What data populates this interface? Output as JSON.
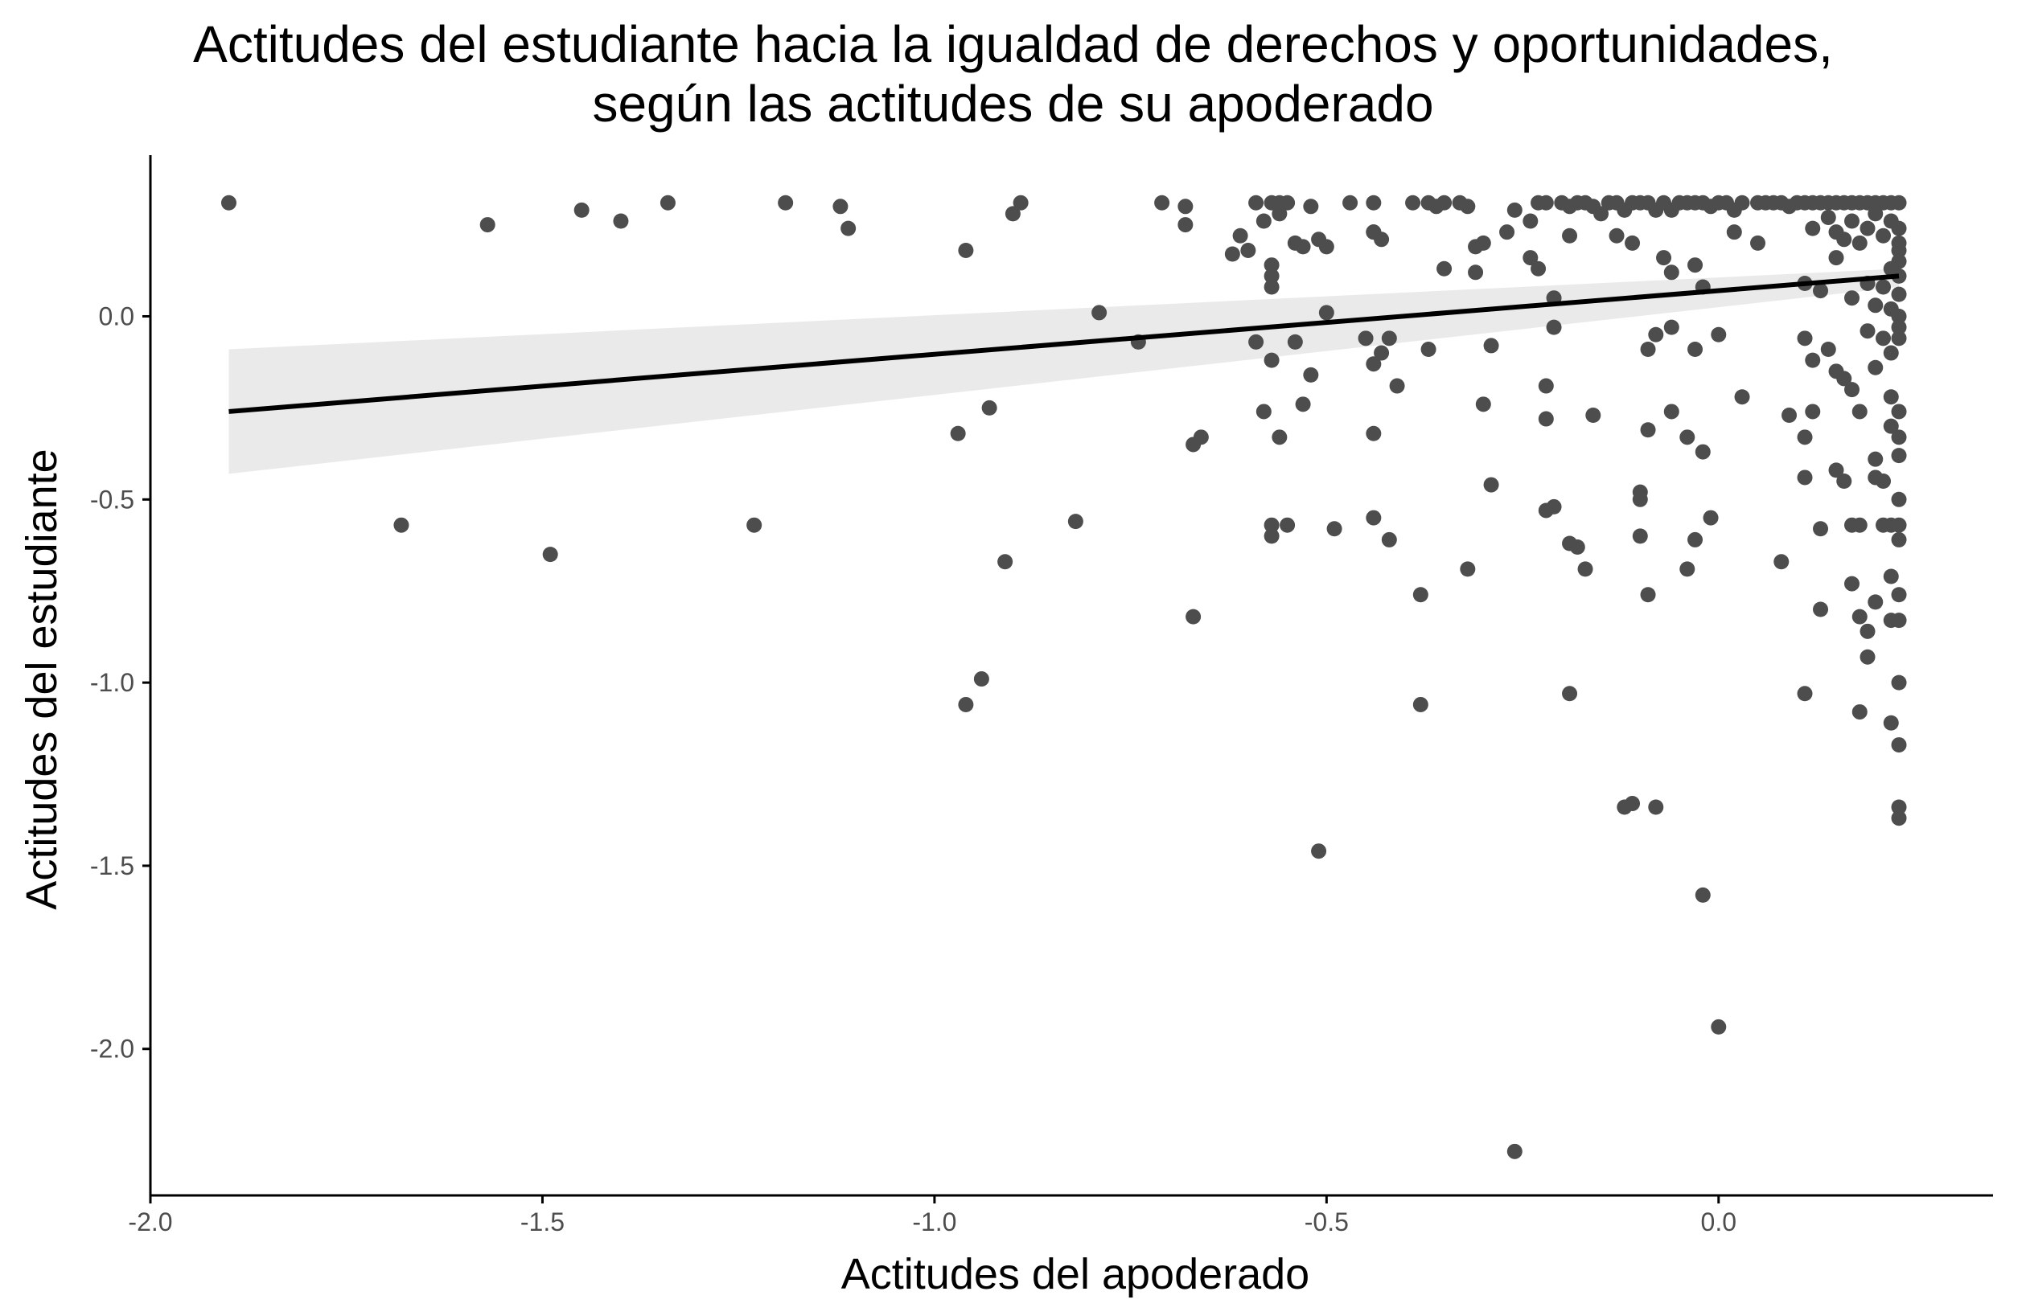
{
  "chart_data": {
    "type": "scatter",
    "title_line1": "Actitudes del estudiante hacia la igualdad de derechos y oportunidades,",
    "title_line2": "según las actitudes de su apoderado",
    "xlabel": "Actitudes del apoderado",
    "ylabel": "Actitudes del estudiante",
    "xlim": [
      -2.0,
      0.35
    ],
    "ylim": [
      -2.4,
      0.44
    ],
    "x_ticks": [
      -2.0,
      -1.5,
      -1.0,
      -0.5,
      0.0
    ],
    "x_tick_labels": [
      "-2.0",
      "-1.5",
      "-1.0",
      "-0.5",
      "0.0"
    ],
    "y_ticks": [
      0.0,
      -0.5,
      -1.0,
      -1.5,
      -2.0
    ],
    "y_tick_labels": [
      "0.0",
      "-0.5",
      "-1.0",
      "-1.5",
      "-2.0"
    ],
    "grid": false,
    "colors": {
      "points": "#4d4d4d",
      "line": "#000000",
      "band": "#e6e6e6",
      "axis": "#000000"
    },
    "trend_line": {
      "x": [
        -1.9,
        0.23
      ],
      "y": [
        -0.26,
        0.11
      ]
    },
    "confidence_band": {
      "x": [
        -1.9,
        0.23
      ],
      "upper": [
        -0.09,
        0.13
      ],
      "lower": [
        -0.43,
        0.08
      ]
    },
    "points": [
      [
        -1.9,
        0.31
      ],
      [
        -1.57,
        0.25
      ],
      [
        -1.45,
        0.29
      ],
      [
        -1.4,
        0.26
      ],
      [
        -1.34,
        0.31
      ],
      [
        -1.19,
        0.31
      ],
      [
        -1.12,
        0.3
      ],
      [
        -1.11,
        0.24
      ],
      [
        -0.96,
        0.18
      ],
      [
        -0.9,
        0.28
      ],
      [
        -0.89,
        0.31
      ],
      [
        -0.71,
        0.31
      ],
      [
        -0.68,
        0.3
      ],
      [
        -0.68,
        0.25
      ],
      [
        -0.62,
        0.17
      ],
      [
        -0.61,
        0.22
      ],
      [
        -0.6,
        0.18
      ],
      [
        -0.59,
        0.31
      ],
      [
        -0.58,
        0.26
      ],
      [
        -0.57,
        0.31
      ],
      [
        -0.56,
        0.28
      ],
      [
        -0.56,
        0.31
      ],
      [
        -0.55,
        0.31
      ],
      [
        -0.54,
        0.2
      ],
      [
        -0.53,
        0.19
      ],
      [
        -0.52,
        0.3
      ],
      [
        -0.51,
        0.21
      ],
      [
        -0.5,
        0.19
      ],
      [
        -0.47,
        0.31
      ],
      [
        -0.44,
        0.31
      ],
      [
        -0.44,
        0.23
      ],
      [
        -0.43,
        0.21
      ],
      [
        -0.39,
        0.31
      ],
      [
        -0.37,
        0.31
      ],
      [
        -0.36,
        0.3
      ],
      [
        -0.35,
        0.31
      ],
      [
        -0.33,
        0.31
      ],
      [
        -0.32,
        0.3
      ],
      [
        -0.31,
        0.19
      ],
      [
        -0.3,
        0.2
      ],
      [
        -0.27,
        0.23
      ],
      [
        -0.26,
        0.29
      ],
      [
        -0.24,
        0.26
      ],
      [
        -0.23,
        0.31
      ],
      [
        -0.22,
        0.31
      ],
      [
        -0.2,
        0.31
      ],
      [
        -0.19,
        0.3
      ],
      [
        -0.18,
        0.31
      ],
      [
        -0.17,
        0.31
      ],
      [
        -0.16,
        0.3
      ],
      [
        -0.15,
        0.28
      ],
      [
        -0.14,
        0.31
      ],
      [
        -0.13,
        0.31
      ],
      [
        -0.12,
        0.29
      ],
      [
        -0.11,
        0.31
      ],
      [
        -0.1,
        0.31
      ],
      [
        -0.09,
        0.31
      ],
      [
        -0.08,
        0.29
      ],
      [
        -0.07,
        0.31
      ],
      [
        -0.06,
        0.29
      ],
      [
        -0.05,
        0.31
      ],
      [
        -0.04,
        0.31
      ],
      [
        -0.03,
        0.31
      ],
      [
        -0.02,
        0.31
      ],
      [
        -0.01,
        0.3
      ],
      [
        0.0,
        0.31
      ],
      [
        0.01,
        0.31
      ],
      [
        0.02,
        0.29
      ],
      [
        0.03,
        0.31
      ],
      [
        0.05,
        0.31
      ],
      [
        0.06,
        0.31
      ],
      [
        0.07,
        0.31
      ],
      [
        0.08,
        0.31
      ],
      [
        0.09,
        0.3
      ],
      [
        0.1,
        0.31
      ],
      [
        0.11,
        0.31
      ],
      [
        0.12,
        0.31
      ],
      [
        0.13,
        0.31
      ],
      [
        0.14,
        0.31
      ],
      [
        0.15,
        0.31
      ],
      [
        0.16,
        0.31
      ],
      [
        0.17,
        0.31
      ],
      [
        0.18,
        0.31
      ],
      [
        0.19,
        0.31
      ],
      [
        0.2,
        0.31
      ],
      [
        0.21,
        0.31
      ],
      [
        0.22,
        0.31
      ],
      [
        0.23,
        0.31
      ],
      [
        0.12,
        0.24
      ],
      [
        0.14,
        0.27
      ],
      [
        0.15,
        0.23
      ],
      [
        0.16,
        0.21
      ],
      [
        0.17,
        0.26
      ],
      [
        0.18,
        0.2
      ],
      [
        0.19,
        0.24
      ],
      [
        0.2,
        0.28
      ],
      [
        0.21,
        0.22
      ],
      [
        0.22,
        0.26
      ],
      [
        0.23,
        0.24
      ],
      [
        0.23,
        0.2
      ],
      [
        0.23,
        0.18
      ],
      [
        0.23,
        0.15
      ],
      [
        0.22,
        0.13
      ],
      [
        0.23,
        0.11
      ],
      [
        -0.57,
        0.14
      ],
      [
        -0.57,
        0.11
      ],
      [
        -0.57,
        0.08
      ],
      [
        -0.44,
        0.23
      ],
      [
        -0.35,
        0.13
      ],
      [
        -0.31,
        0.12
      ],
      [
        -0.24,
        0.16
      ],
      [
        -0.23,
        0.13
      ],
      [
        -0.21,
        0.05
      ],
      [
        -0.19,
        0.22
      ],
      [
        -0.13,
        0.22
      ],
      [
        -0.11,
        0.2
      ],
      [
        -0.07,
        0.16
      ],
      [
        -0.06,
        0.12
      ],
      [
        -0.03,
        0.14
      ],
      [
        -0.02,
        0.08
      ],
      [
        0.02,
        0.23
      ],
      [
        0.05,
        0.2
      ],
      [
        0.11,
        0.09
      ],
      [
        0.13,
        0.07
      ],
      [
        0.15,
        0.16
      ],
      [
        0.17,
        0.05
      ],
      [
        0.19,
        0.09
      ],
      [
        0.2,
        0.03
      ],
      [
        0.21,
        0.08
      ],
      [
        0.22,
        0.02
      ],
      [
        0.23,
        0.06
      ],
      [
        0.23,
        0.0
      ],
      [
        0.23,
        -0.03
      ],
      [
        0.23,
        -0.06
      ],
      [
        0.22,
        -0.1
      ],
      [
        0.21,
        -0.06
      ],
      [
        -0.79,
        0.01
      ],
      [
        -0.74,
        -0.07
      ],
      [
        -0.59,
        -0.07
      ],
      [
        -0.57,
        -0.12
      ],
      [
        -0.54,
        -0.07
      ],
      [
        -0.52,
        -0.16
      ],
      [
        -0.5,
        0.01
      ],
      [
        -0.45,
        -0.06
      ],
      [
        -0.44,
        -0.13
      ],
      [
        -0.43,
        -0.1
      ],
      [
        -0.42,
        -0.06
      ],
      [
        -0.41,
        -0.19
      ],
      [
        -0.37,
        -0.09
      ],
      [
        -0.29,
        -0.08
      ],
      [
        -0.22,
        -0.19
      ],
      [
        -0.21,
        -0.03
      ],
      [
        -0.16,
        -0.27
      ],
      [
        -0.09,
        -0.09
      ],
      [
        -0.08,
        -0.05
      ],
      [
        -0.06,
        -0.03
      ],
      [
        -0.03,
        -0.09
      ],
      [
        0.0,
        -0.05
      ],
      [
        0.03,
        -0.22
      ],
      [
        0.09,
        -0.27
      ],
      [
        0.11,
        -0.06
      ],
      [
        0.12,
        -0.12
      ],
      [
        0.12,
        -0.26
      ],
      [
        0.14,
        -0.09
      ],
      [
        0.15,
        -0.15
      ],
      [
        0.16,
        -0.17
      ],
      [
        0.17,
        -0.2
      ],
      [
        0.18,
        -0.26
      ],
      [
        0.19,
        -0.04
      ],
      [
        0.2,
        -0.14
      ],
      [
        0.22,
        -0.22
      ],
      [
        0.22,
        -0.3
      ],
      [
        0.23,
        -0.26
      ],
      [
        0.23,
        -0.33
      ],
      [
        0.23,
        -0.38
      ],
      [
        0.21,
        -0.45
      ],
      [
        -0.97,
        -0.32
      ],
      [
        -0.93,
        -0.25
      ],
      [
        -0.67,
        -0.35
      ],
      [
        -0.66,
        -0.33
      ],
      [
        -0.58,
        -0.26
      ],
      [
        -0.56,
        -0.33
      ],
      [
        -0.53,
        -0.24
      ],
      [
        -0.44,
        -0.32
      ],
      [
        -0.3,
        -0.24
      ],
      [
        -0.29,
        -0.46
      ],
      [
        -0.22,
        -0.28
      ],
      [
        -0.21,
        -0.52
      ],
      [
        -0.22,
        -0.53
      ],
      [
        -0.1,
        -0.48
      ],
      [
        -0.09,
        -0.31
      ],
      [
        -0.06,
        -0.26
      ],
      [
        -0.04,
        -0.33
      ],
      [
        -0.02,
        -0.37
      ],
      [
        0.11,
        -0.33
      ],
      [
        0.11,
        -0.44
      ],
      [
        0.13,
        -0.58
      ],
      [
        0.15,
        -0.42
      ],
      [
        0.16,
        -0.45
      ],
      [
        0.17,
        -0.57
      ],
      [
        0.18,
        -0.57
      ],
      [
        0.2,
        -0.44
      ],
      [
        0.2,
        -0.39
      ],
      [
        0.21,
        -0.57
      ],
      [
        0.22,
        -0.57
      ],
      [
        0.23,
        -0.57
      ],
      [
        0.23,
        -0.61
      ],
      [
        0.23,
        -0.5
      ],
      [
        -1.68,
        -0.57
      ],
      [
        -1.49,
        -0.65
      ],
      [
        -1.23,
        -0.57
      ],
      [
        -0.91,
        -0.67
      ],
      [
        -0.82,
        -0.56
      ],
      [
        -0.67,
        -0.82
      ],
      [
        -0.57,
        -0.57
      ],
      [
        -0.57,
        -0.6
      ],
      [
        -0.55,
        -0.57
      ],
      [
        -0.49,
        -0.58
      ],
      [
        -0.44,
        -0.55
      ],
      [
        -0.42,
        -0.61
      ],
      [
        -0.38,
        -0.76
      ],
      [
        -0.32,
        -0.69
      ],
      [
        -0.19,
        -0.62
      ],
      [
        -0.18,
        -0.63
      ],
      [
        -0.17,
        -0.69
      ],
      [
        -0.1,
        -0.5
      ],
      [
        -0.1,
        -0.6
      ],
      [
        -0.09,
        -0.76
      ],
      [
        -0.04,
        -0.69
      ],
      [
        -0.03,
        -0.61
      ],
      [
        -0.01,
        -0.55
      ],
      [
        0.08,
        -0.67
      ],
      [
        0.13,
        -0.8
      ],
      [
        0.17,
        -0.73
      ],
      [
        0.18,
        -0.82
      ],
      [
        0.19,
        -0.86
      ],
      [
        0.19,
        -0.93
      ],
      [
        0.2,
        -0.78
      ],
      [
        0.22,
        -0.71
      ],
      [
        0.23,
        -0.76
      ],
      [
        0.22,
        -0.83
      ],
      [
        0.23,
        -0.83
      ],
      [
        -0.96,
        -1.06
      ],
      [
        -0.94,
        -0.99
      ],
      [
        -0.38,
        -1.06
      ],
      [
        -0.19,
        -1.03
      ],
      [
        0.11,
        -1.03
      ],
      [
        0.18,
        -1.08
      ],
      [
        0.23,
        -1.0
      ],
      [
        0.22,
        -1.11
      ],
      [
        0.23,
        -1.17
      ],
      [
        -0.12,
        -1.34
      ],
      [
        -0.11,
        -1.33
      ],
      [
        -0.08,
        -1.34
      ],
      [
        0.23,
        -1.34
      ],
      [
        0.23,
        -1.37
      ],
      [
        -0.51,
        -1.46
      ],
      [
        -0.02,
        -1.58
      ],
      [
        0.0,
        -1.94
      ],
      [
        -0.26,
        -2.28
      ]
    ]
  }
}
